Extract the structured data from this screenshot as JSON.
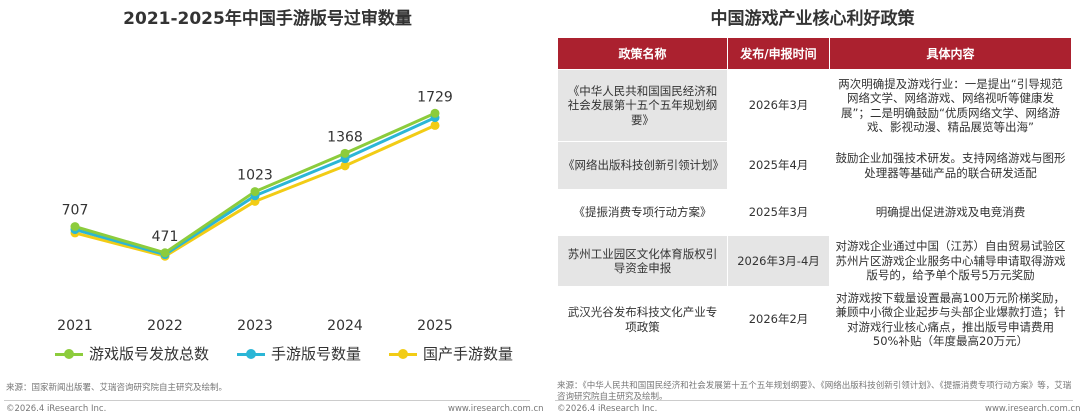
{
  "left_panel": {
    "title": "2021-2025年中国手游版号过审数量",
    "source": "来源：国家新闻出版署、艾瑞咨询研究院自主研究及绘制。",
    "copyright": "©2026.4 iResearch Inc.",
    "website": "www.iresearch.com.cn"
  },
  "chart_data": {
    "type": "line",
    "title": "2021-2025年中国手游版号过审数量",
    "x": [
      "2021",
      "2022",
      "2023",
      "2024",
      "2025"
    ],
    "data_labels": [
      "707",
      "471",
      "1023",
      "1368",
      "1729"
    ],
    "ylim": [
      0,
      2300
    ],
    "grid": false,
    "legend_position": "bottom",
    "series": [
      {
        "name": "游戏版号发放总数",
        "color": "#8ccc3c",
        "values": [
          707,
          471,
          1023,
          1368,
          1729
        ]
      },
      {
        "name": "手游版号数量",
        "color": "#2bb6d6",
        "values": [
          680,
          455,
          985,
          1320,
          1690
        ]
      },
      {
        "name": "国产手游数量",
        "color": "#f2cc15",
        "values": [
          650,
          440,
          935,
          1255,
          1620
        ]
      }
    ]
  },
  "right_panel": {
    "title": "中国游戏产业核心利好政策",
    "headers": [
      "政策名称",
      "发布/申报时间",
      "具体内容"
    ],
    "rows": [
      {
        "name": "《中华人民共和国国民经济和社会发展第十五个五年规划纲要》",
        "time": "2026年3月",
        "content": "两次明确提及游戏行业：一是提出“引导规范网络文学、网络游戏、网络视听等健康发展”；二是明确鼓励“优质网络文学、网络游戏、影视动漫、精品展览等出海”"
      },
      {
        "name": "《网络出版科技创新引领计划》",
        "time": "2025年4月",
        "content": "鼓励企业加强技术研发。支持网络游戏与图形处理器等基础产品的联合研发适配"
      },
      {
        "name": "《提振消费专项行动方案》",
        "time": "2025年3月",
        "content": "明确提出促进游戏及电竞消费"
      },
      {
        "name": "苏州工业园区文化体育版权引导资金申报",
        "time": "2026年3月-4月",
        "content": "对游戏企业通过中国（江苏）自由贸易试验区苏州片区游戏企业服务中心辅导申请取得游戏版号的，给予单个版号5万元奖励"
      },
      {
        "name": "武汉光谷发布科技文化产业专项政策",
        "time": "2026年2月",
        "content": "对游戏按下载量设置最高100万元阶梯奖励，兼顾中小微企业起步与头部企业爆款打造；针对游戏行业核心痛点，推出版号申请费用50%补贴（年度最高20万元）"
      }
    ],
    "source": "来源：《中华人民共和国国民经济和社会发展第十五个五年规划纲要》、《网络出版科技创新引领计划》、《提振消费专项行动方案》等，艾瑞咨询研究院自主研究及绘制。",
    "copyright": "©2026.4 iResearch Inc.",
    "website": "www.iresearch.com.cn"
  }
}
